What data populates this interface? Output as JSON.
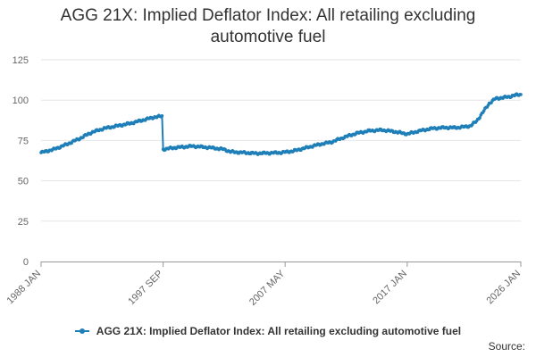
{
  "chart_data": {
    "type": "line",
    "title": "AGG 21X: Implied Deflator Index: All retailing excluding automotive fuel",
    "xlabel": "",
    "ylabel": "",
    "ylim": [
      0,
      125
    ],
    "yticks": [
      0,
      25,
      50,
      75,
      100,
      125
    ],
    "x_range": [
      1988.0,
      2026.0
    ],
    "xticks": [
      {
        "label": "1988 JAN",
        "x": 1988.0
      },
      {
        "label": "1997 SEP",
        "x": 1997.67
      },
      {
        "label": "2007 MAY",
        "x": 2007.33
      },
      {
        "label": "2017 JAN",
        "x": 2017.0
      },
      {
        "label": "2026 JAN",
        "x": 2026.0
      }
    ],
    "grid": "horizontal",
    "color": "#1f7fb8",
    "series": [
      {
        "name": "AGG 21X: Implied Deflator Index: All retailing excluding automotive fuel",
        "points": [
          [
            1988.0,
            67.5
          ],
          [
            1989.0,
            69.5
          ],
          [
            1990.0,
            72.5
          ],
          [
            1991.0,
            76.0
          ],
          [
            1992.0,
            80.0
          ],
          [
            1993.0,
            82.5
          ],
          [
            1994.0,
            84.0
          ],
          [
            1995.0,
            85.5
          ],
          [
            1996.0,
            87.5
          ],
          [
            1997.0,
            89.5
          ],
          [
            1997.58,
            90.0
          ],
          [
            1997.67,
            69.5
          ],
          [
            1998.5,
            70.5
          ],
          [
            2000.0,
            71.5
          ],
          [
            2001.5,
            70.5
          ],
          [
            2002.5,
            69.5
          ],
          [
            2003.0,
            68.0
          ],
          [
            2005.0,
            67.0
          ],
          [
            2007.0,
            67.5
          ],
          [
            2008.0,
            68.5
          ],
          [
            2009.0,
            70.5
          ],
          [
            2010.0,
            72.5
          ],
          [
            2011.0,
            74.0
          ],
          [
            2012.0,
            77.0
          ],
          [
            2013.0,
            79.5
          ],
          [
            2014.0,
            81.0
          ],
          [
            2015.0,
            81.5
          ],
          [
            2016.0,
            80.5
          ],
          [
            2017.0,
            79.0
          ],
          [
            2018.0,
            81.0
          ],
          [
            2019.0,
            82.5
          ],
          [
            2020.0,
            83.0
          ],
          [
            2021.0,
            83.0
          ],
          [
            2022.0,
            84.0
          ],
          [
            2022.5,
            87.0
          ],
          [
            2023.0,
            92.5
          ],
          [
            2023.5,
            98.0
          ],
          [
            2024.0,
            101.0
          ],
          [
            2024.5,
            101.5
          ],
          [
            2025.0,
            102.0
          ],
          [
            2025.5,
            103.0
          ],
          [
            2026.0,
            103.5
          ]
        ]
      }
    ]
  },
  "legend": {
    "label": "AGG 21X: Implied Deflator Index: All retailing excluding automotive fuel"
  },
  "source_label": "Source:"
}
